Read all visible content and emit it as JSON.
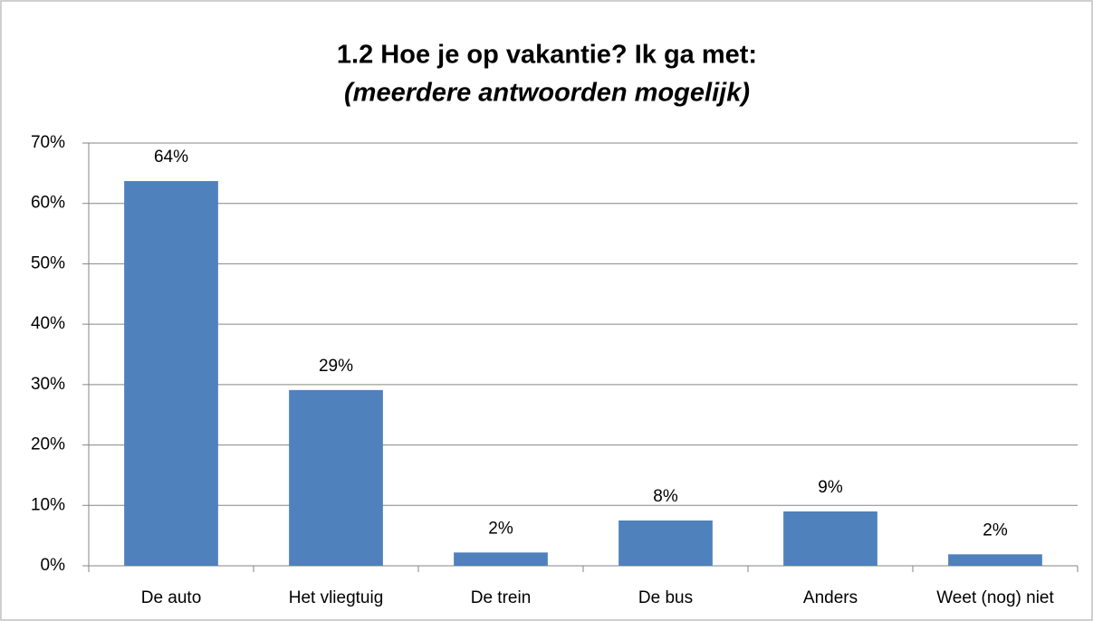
{
  "chart_data": {
    "type": "bar",
    "title": "1.2 Hoe je op vakantie? Ik ga met:",
    "subtitle": "(meerdere antwoorden mogelijk)",
    "categories": [
      "De auto",
      "Het vliegtuig",
      "De trein",
      "De bus",
      "Anders",
      "Weet (nog) niet"
    ],
    "values": [
      63.7,
      29.1,
      2.2,
      7.5,
      9.0,
      1.9
    ],
    "value_labels": [
      "64%",
      "29%",
      "2%",
      "8%",
      "9%",
      "2%"
    ],
    "color": "#4f81bd",
    "ylim": [
      0,
      70
    ],
    "yticks": [
      {
        "value": 0,
        "label": "0%"
      },
      {
        "value": 10,
        "label": "10%"
      },
      {
        "value": 20,
        "label": "20%"
      },
      {
        "value": 30,
        "label": "30%"
      },
      {
        "value": 40,
        "label": "40%"
      },
      {
        "value": 50,
        "label": "50%"
      },
      {
        "value": 60,
        "label": "60%"
      },
      {
        "value": 70,
        "label": "70%"
      }
    ],
    "grid": true
  }
}
